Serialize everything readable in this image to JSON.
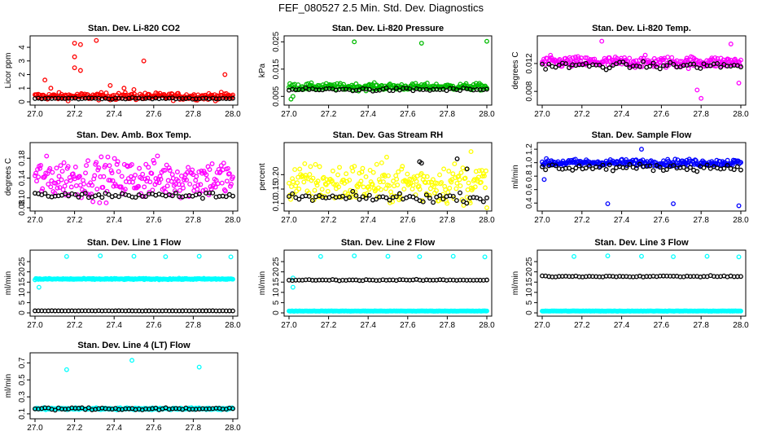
{
  "page_title": "FEF_080527  2.5 Min. Std. Dev. Diagnostics",
  "colors": {
    "co2": "#ff0000",
    "pressure": "#00bb00",
    "temp": "#ff00ff",
    "boxtemp": "#ff00ff",
    "rh": "#ffff00",
    "sample": "#0000ff",
    "line": "#00ffff",
    "overlay": "#000000"
  },
  "chart_data": [
    {
      "type": "scatter",
      "title": "Stan. Dev. Li-820 CO2",
      "ylabel": "Licor ppm",
      "xlim": [
        27.0,
        28.0
      ],
      "ylim": [
        0,
        4.6
      ],
      "x_ticks": [
        "27.0",
        "27.2",
        "27.4",
        "27.6",
        "27.8",
        "28.0"
      ],
      "y_ticks": [
        "0",
        "1",
        "2",
        "3",
        "4"
      ],
      "y_tick_values": [
        0,
        1,
        2,
        3,
        4
      ],
      "series": [
        {
          "name": "primary",
          "color": "#ff0000",
          "base": 0.4,
          "spread": 0.25,
          "outliers": [
            [
              27.2,
              4.3
            ],
            [
              27.23,
              4.2
            ],
            [
              27.31,
              4.5
            ],
            [
              27.2,
              3.3
            ],
            [
              27.2,
              2.5
            ],
            [
              27.23,
              2.3
            ],
            [
              27.55,
              3.0
            ],
            [
              27.05,
              1.6
            ],
            [
              27.96,
              2.0
            ],
            [
              27.08,
              1.0
            ],
            [
              27.38,
              1.2
            ],
            [
              27.45,
              1.0
            ],
            [
              27.5,
              0.9
            ]
          ]
        },
        {
          "name": "overlay",
          "color": "#000000",
          "base": 0.25,
          "spread": 0.05,
          "outliers": []
        }
      ]
    },
    {
      "type": "scatter",
      "title": "Stan. Dev. Li-820 Pressure",
      "ylabel": "kPa",
      "xlim": [
        27.0,
        28.0
      ],
      "ylim": [
        0.003,
        0.026
      ],
      "x_ticks": [
        "27.0",
        "27.2",
        "27.4",
        "27.6",
        "27.8",
        "28.0"
      ],
      "y_ticks": [
        "0.005",
        "0.015",
        "0.025"
      ],
      "y_tick_values": [
        0.005,
        0.015,
        0.025
      ],
      "series": [
        {
          "name": "primary",
          "color": "#00bb00",
          "base": 0.0085,
          "spread": 0.0012,
          "outliers": [
            [
              27.33,
              0.025
            ],
            [
              27.67,
              0.0245
            ],
            [
              28.0,
              0.0252
            ],
            [
              27.01,
              0.004
            ],
            [
              27.02,
              0.005
            ]
          ]
        },
        {
          "name": "overlay",
          "color": "#000000",
          "base": 0.0075,
          "spread": 0.0006,
          "outliers": []
        }
      ]
    },
    {
      "type": "scatter",
      "title": "Stan. Dev. Li-820 Temp.",
      "ylabel": "degrees C",
      "xlim": [
        27.0,
        28.0
      ],
      "ylim": [
        0.0065,
        0.0155
      ],
      "x_ticks": [
        "27.0",
        "27.2",
        "27.4",
        "27.6",
        "27.8",
        "28.0"
      ],
      "y_ticks": [
        "0.008",
        "0.012"
      ],
      "y_tick_values": [
        0.008,
        0.012
      ],
      "series": [
        {
          "name": "primary",
          "color": "#ff00ff",
          "base": 0.0122,
          "spread": 0.0008,
          "outliers": [
            [
              27.8,
              0.007
            ],
            [
              27.78,
              0.0082
            ],
            [
              27.99,
              0.0092
            ],
            [
              27.3,
              0.0152
            ],
            [
              27.95,
              0.0148
            ]
          ]
        },
        {
          "name": "overlay",
          "color": "#000000",
          "base": 0.0117,
          "spread": 0.0005,
          "outliers": []
        }
      ]
    },
    {
      "type": "scatter",
      "title": "Stan. Dev. Amb. Box Temp.",
      "ylabel": "degrees C",
      "xlim": [
        27.0,
        28.0
      ],
      "ylim": [
        0.08,
        0.205
      ],
      "x_ticks": [
        "27.0",
        "27.2",
        "27.4",
        "27.6",
        "27.8",
        "28.0"
      ],
      "y_ticks": [
        "0.08",
        "0.10",
        "0.14",
        "0.18"
      ],
      "y_tick_values": [
        0.08,
        0.1,
        0.14,
        0.18
      ],
      "series": [
        {
          "name": "primary",
          "color": "#ff00ff",
          "base": 0.14,
          "spread": 0.04,
          "outliers": []
        },
        {
          "name": "overlay",
          "color": "#000000",
          "base": 0.105,
          "spread": 0.006,
          "outliers": []
        }
      ]
    },
    {
      "type": "scatter",
      "title": "Stan. Dev. Gas Stream RH",
      "ylabel": "percent",
      "xlim": [
        27.0,
        28.0
      ],
      "ylim": [
        0.085,
        0.3
      ],
      "x_ticks": [
        "27.0",
        "27.2",
        "27.4",
        "27.6",
        "27.8",
        "28.0"
      ],
      "y_ticks": [
        "0.10",
        "0.15",
        "0.20"
      ],
      "y_tick_values": [
        0.1,
        0.15,
        0.2
      ],
      "series": [
        {
          "name": "primary",
          "color": "#ffff00",
          "base": 0.17,
          "spread": 0.07,
          "outliers": [
            [
              27.92,
              0.28
            ]
          ]
        },
        {
          "name": "overlay",
          "color": "#000000",
          "base": 0.12,
          "spread": 0.015,
          "outliers": [
            [
              27.66,
              0.245
            ],
            [
              27.67,
              0.24
            ],
            [
              27.85,
              0.255
            ],
            [
              27.9,
              0.22
            ]
          ]
        }
      ]
    },
    {
      "type": "scatter",
      "title": "Stan. Dev. Sample Flow",
      "ylabel": "ml/min",
      "xlim": [
        27.0,
        28.0
      ],
      "ylim": [
        0.33,
        1.25
      ],
      "x_ticks": [
        "27.0",
        "27.2",
        "27.4",
        "27.6",
        "27.8",
        "28.0"
      ],
      "y_ticks": [
        "0.4",
        "0.6",
        "0.8",
        "1.0",
        "1.2"
      ],
      "y_tick_values": [
        0.4,
        0.6,
        0.8,
        1.0,
        1.2
      ],
      "series": [
        {
          "name": "primary",
          "color": "#0000ff",
          "base": 1.0,
          "spread": 0.05,
          "outliers": [
            [
              27.33,
              0.39
            ],
            [
              27.66,
              0.39
            ],
            [
              27.99,
              0.36
            ],
            [
              27.5,
              1.2
            ],
            [
              27.01,
              0.75
            ]
          ]
        },
        {
          "name": "overlay",
          "color": "#000000",
          "base": 0.93,
          "spread": 0.05,
          "outliers": []
        }
      ]
    },
    {
      "type": "scatter",
      "title": "Stan. Dev. Line 1 Flow",
      "ylabel": "ml/min",
      "xlim": [
        27.0,
        28.0
      ],
      "ylim": [
        0,
        29
      ],
      "x_ticks": [
        "27.0",
        "27.2",
        "27.4",
        "27.6",
        "27.8",
        "28.0"
      ],
      "y_ticks": [
        "0",
        "5",
        "10",
        "15",
        "20",
        "25"
      ],
      "y_tick_values": [
        0,
        5,
        10,
        15,
        20,
        25
      ],
      "series": [
        {
          "name": "primary",
          "color": "#00ffff",
          "base": 16.5,
          "spread": 0.3,
          "outliers": [
            [
              27.16,
              27.5
            ],
            [
              27.33,
              27.8
            ],
            [
              27.5,
              27.6
            ],
            [
              27.66,
              27.4
            ],
            [
              27.83,
              27.6
            ],
            [
              27.99,
              27.3
            ],
            [
              27.02,
              12.5
            ]
          ]
        },
        {
          "name": "overlay",
          "color": "#000000",
          "base": 1.0,
          "spread": 0.05,
          "outliers": []
        }
      ]
    },
    {
      "type": "scatter",
      "title": "Stan. Dev. Line 2 Flow",
      "ylabel": "ml/min",
      "xlim": [
        27.0,
        28.0
      ],
      "ylim": [
        0,
        29
      ],
      "x_ticks": [
        "27.0",
        "27.2",
        "27.4",
        "27.6",
        "27.8",
        "28.0"
      ],
      "y_ticks": [
        "0",
        "5",
        "10",
        "15",
        "20",
        "25"
      ],
      "y_tick_values": [
        0,
        5,
        10,
        15,
        20,
        25
      ],
      "series": [
        {
          "name": "primary",
          "color": "#00ffff",
          "base": 0.9,
          "spread": 0.08,
          "outliers": [
            [
              27.16,
              27.5
            ],
            [
              27.33,
              27.8
            ],
            [
              27.5,
              27.6
            ],
            [
              27.66,
              27.4
            ],
            [
              27.83,
              27.6
            ],
            [
              27.99,
              27.3
            ],
            [
              27.02,
              12.5
            ],
            [
              27.02,
              17.0
            ]
          ]
        },
        {
          "name": "overlay",
          "color": "#000000",
          "base": 16.0,
          "spread": 0.25,
          "outliers": []
        }
      ]
    },
    {
      "type": "scatter",
      "title": "Stan. Dev. Line 3 Flow",
      "ylabel": "ml/min",
      "xlim": [
        27.0,
        28.0
      ],
      "ylim": [
        0,
        29
      ],
      "x_ticks": [
        "27.0",
        "27.2",
        "27.4",
        "27.6",
        "27.8",
        "28.0"
      ],
      "y_ticks": [
        "0",
        "5",
        "10",
        "15",
        "20",
        "25"
      ],
      "y_tick_values": [
        0,
        5,
        10,
        15,
        20,
        25
      ],
      "series": [
        {
          "name": "primary",
          "color": "#00ffff",
          "base": 0.9,
          "spread": 0.08,
          "outliers": [
            [
              27.16,
              27.5
            ],
            [
              27.33,
              27.8
            ],
            [
              27.5,
              27.6
            ],
            [
              27.66,
              27.4
            ],
            [
              27.83,
              27.6
            ],
            [
              27.99,
              27.3
            ]
          ]
        },
        {
          "name": "overlay",
          "color": "#000000",
          "base": 17.8,
          "spread": 0.3,
          "outliers": []
        }
      ]
    },
    {
      "type": "scatter",
      "title": "Stan. Dev. Line 4 (LT) Flow",
      "ylabel": "ml/min",
      "xlim": [
        27.0,
        28.0
      ],
      "ylim": [
        0.08,
        0.78
      ],
      "x_ticks": [
        "27.0",
        "27.2",
        "27.4",
        "27.6",
        "27.8",
        "28.0"
      ],
      "y_ticks": [
        "0.1",
        "0.3",
        "0.5",
        "0.7"
      ],
      "y_tick_values": [
        0.1,
        0.3,
        0.5,
        0.7
      ],
      "series": [
        {
          "name": "primary",
          "color": "#00ffff",
          "base": 0.16,
          "spread": 0.012,
          "outliers": [
            [
              27.16,
              0.62
            ],
            [
              27.49,
              0.73
            ],
            [
              27.83,
              0.65
            ]
          ]
        },
        {
          "name": "overlay",
          "color": "#000000",
          "base": 0.16,
          "spread": 0.015,
          "outliers": []
        }
      ]
    }
  ]
}
